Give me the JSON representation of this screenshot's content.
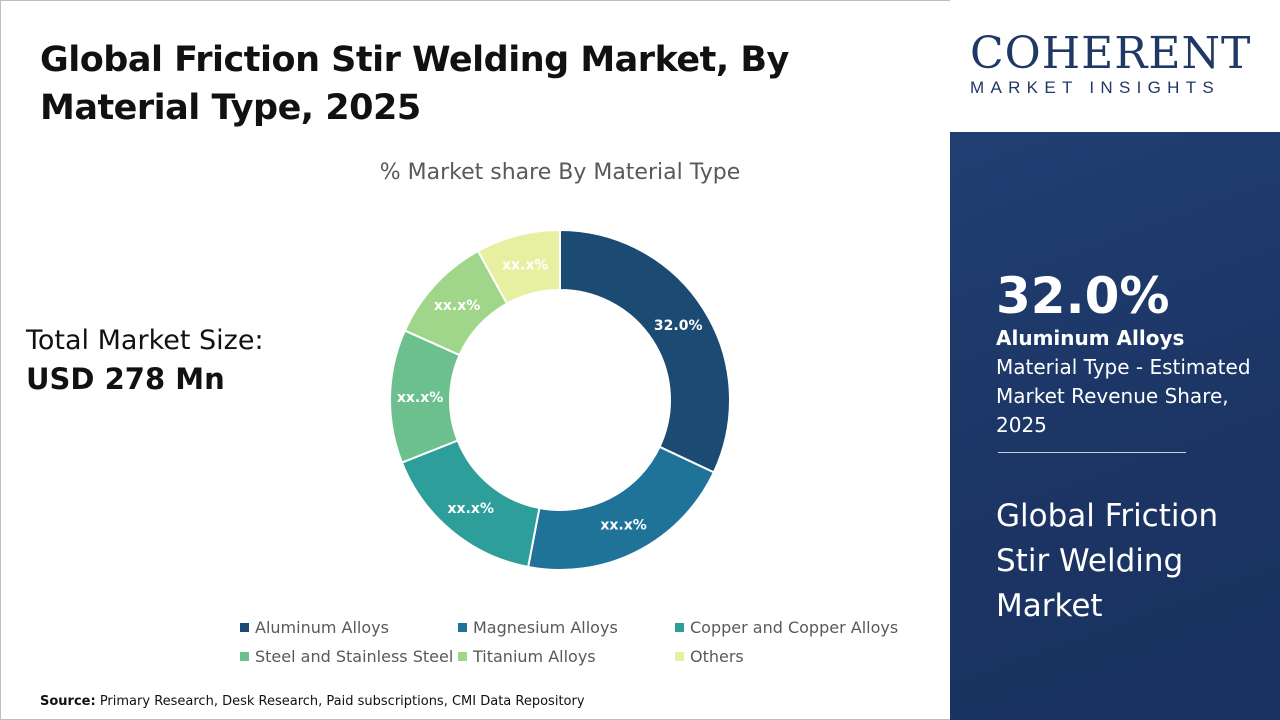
{
  "title": "Global Friction Stir Welding Market, By Material Type, 2025",
  "total_market": {
    "label": "Total Market Size:",
    "value": "USD 278 Mn"
  },
  "source": {
    "label": "Source:",
    "text": " Primary Research, Desk Research, Paid subscriptions, CMI Data Repository"
  },
  "logo": {
    "main": "COHERENT",
    "sub": "MARKET INSIGHTS"
  },
  "highlight": {
    "value": "32.0%",
    "bold": "Aluminum Alloys",
    "text": " Material Type - Estimated Market Revenue Share, 2025",
    "market": "Global Friction Stir Welding Market"
  },
  "chart_data": {
    "type": "pie",
    "donut": true,
    "title": "% Market share By Material Type",
    "categories": [
      "Aluminum Alloys",
      "Magnesium Alloys",
      "Copper and Copper Alloys",
      "Steel and Stainless Steel",
      "Titanium Alloys",
      "Others"
    ],
    "values": [
      32.0,
      21.0,
      16.0,
      12.7,
      10.3,
      8.0
    ],
    "data_labels": [
      "32.0%",
      "xx.x%",
      "xx.x%",
      "xx.x%",
      "xx.x%",
      "xx.x%"
    ],
    "colors": [
      "#1b4a72",
      "#1f7399",
      "#2e9e9a",
      "#6cc08e",
      "#a0d68a",
      "#e6f0a0"
    ],
    "legend_position": "bottom"
  }
}
